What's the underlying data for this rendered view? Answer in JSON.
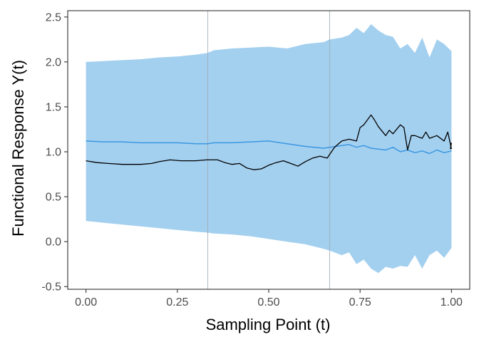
{
  "chart_data": {
    "type": "area",
    "xlabel": "Sampling Point (t)",
    "ylabel": "Functional Response Y(t)",
    "xlim": [
      -0.05,
      1.05
    ],
    "ylim": [
      -0.53,
      2.57
    ],
    "xticks": [
      0.0,
      0.25,
      0.5,
      0.75,
      1.0
    ],
    "xtick_labels": [
      "0.00",
      "0.25",
      "0.50",
      "0.75",
      "1.00"
    ],
    "yticks": [
      -0.5,
      0.0,
      0.5,
      1.0,
      1.5,
      2.0,
      2.5
    ],
    "ytick_labels": [
      "-0.5",
      "0.0",
      "0.5",
      "1.0",
      "1.5",
      "2.0",
      "2.5"
    ],
    "vlines": [
      0.3333,
      0.6667
    ],
    "grid": false,
    "colors": {
      "band": "#a4d0f0",
      "mean": "#3a97e0",
      "observed": "#000000",
      "vline": "#9aa7b1",
      "axis": "#333333"
    },
    "band": {
      "x": [
        0.0,
        0.05,
        0.1,
        0.15,
        0.2,
        0.25,
        0.3,
        0.333,
        0.35,
        0.4,
        0.45,
        0.5,
        0.55,
        0.6,
        0.65,
        0.667,
        0.7,
        0.72,
        0.74,
        0.76,
        0.78,
        0.8,
        0.82,
        0.84,
        0.86,
        0.88,
        0.9,
        0.92,
        0.94,
        0.96,
        0.98,
        1.0
      ],
      "upper": [
        2.0,
        2.01,
        2.02,
        2.03,
        2.05,
        2.06,
        2.08,
        2.1,
        2.13,
        2.15,
        2.16,
        2.17,
        2.15,
        2.2,
        2.22,
        2.25,
        2.27,
        2.3,
        2.38,
        2.32,
        2.42,
        2.35,
        2.3,
        2.28,
        2.15,
        2.2,
        2.1,
        2.27,
        2.05,
        2.25,
        2.2,
        2.12
      ],
      "lower": [
        0.23,
        0.21,
        0.19,
        0.17,
        0.15,
        0.13,
        0.11,
        0.1,
        0.09,
        0.08,
        0.06,
        0.03,
        0.0,
        -0.03,
        -0.08,
        -0.1,
        -0.15,
        -0.12,
        -0.25,
        -0.2,
        -0.3,
        -0.35,
        -0.28,
        -0.3,
        -0.27,
        -0.28,
        -0.15,
        -0.3,
        -0.15,
        -0.1,
        -0.18,
        -0.07
      ]
    },
    "series": [
      {
        "x": [
          0.0,
          0.05,
          0.1,
          0.15,
          0.2,
          0.25,
          0.3,
          0.333,
          0.35,
          0.4,
          0.45,
          0.5,
          0.55,
          0.6,
          0.65,
          0.667,
          0.7,
          0.72,
          0.74,
          0.76,
          0.78,
          0.8,
          0.82,
          0.84,
          0.86,
          0.88,
          0.9,
          0.92,
          0.94,
          0.96,
          0.98,
          1.0
        ],
        "y": [
          1.12,
          1.11,
          1.11,
          1.1,
          1.1,
          1.1,
          1.09,
          1.09,
          1.1,
          1.1,
          1.11,
          1.12,
          1.09,
          1.06,
          1.04,
          1.05,
          1.07,
          1.08,
          1.05,
          1.07,
          1.04,
          1.03,
          1.02,
          1.05,
          1.0,
          1.02,
          0.99,
          1.01,
          0.98,
          1.02,
          0.99,
          1.01
        ]
      },
      {
        "x": [
          0.0,
          0.03,
          0.06,
          0.1,
          0.15,
          0.18,
          0.2,
          0.23,
          0.26,
          0.3,
          0.33,
          0.36,
          0.38,
          0.4,
          0.42,
          0.44,
          0.46,
          0.48,
          0.5,
          0.52,
          0.54,
          0.56,
          0.58,
          0.6,
          0.62,
          0.64,
          0.66,
          0.68,
          0.7,
          0.72,
          0.74,
          0.75,
          0.76,
          0.78,
          0.79,
          0.8,
          0.82,
          0.83,
          0.84,
          0.86,
          0.87,
          0.88,
          0.89,
          0.9,
          0.92,
          0.93,
          0.94,
          0.96,
          0.98,
          0.99,
          1.0
        ],
        "y": [
          0.9,
          0.88,
          0.87,
          0.86,
          0.86,
          0.87,
          0.89,
          0.91,
          0.9,
          0.9,
          0.91,
          0.91,
          0.88,
          0.86,
          0.87,
          0.82,
          0.8,
          0.81,
          0.85,
          0.88,
          0.9,
          0.87,
          0.84,
          0.89,
          0.93,
          0.95,
          0.93,
          1.05,
          1.12,
          1.14,
          1.12,
          1.27,
          1.3,
          1.41,
          1.35,
          1.28,
          1.18,
          1.24,
          1.2,
          1.3,
          1.27,
          1.02,
          1.18,
          1.18,
          1.15,
          1.22,
          1.15,
          1.18,
          1.12,
          1.22,
          1.03
        ]
      },
      {
        "x": [
          0.997,
          1.0
        ],
        "y": [
          1.03,
          1.1
        ]
      }
    ]
  }
}
